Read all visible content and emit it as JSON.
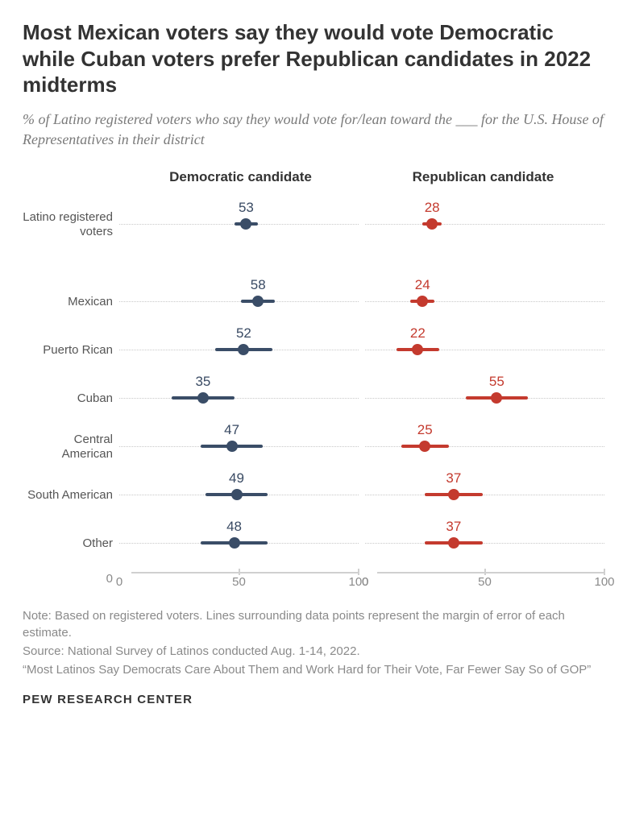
{
  "title": "Most Mexican voters say they would vote Democratic while Cuban voters prefer Republican candidates in 2022 midterms",
  "subtitle": "% of Latino registered voters who say they would vote for/lean toward the ___ for the U.S. House of Representatives in their district",
  "columns": [
    {
      "label": "Democratic candidate",
      "color": "#3a4d67",
      "label_color": "#394a63"
    },
    {
      "label": "Republican candidate",
      "color": "#c43a2e",
      "label_color": "#c43a2e"
    }
  ],
  "axis": {
    "min": 0,
    "max": 100,
    "ticks": [
      50,
      100
    ],
    "zero_label": "0"
  },
  "groups": [
    {
      "rows": [
        {
          "label": "Latino registered voters",
          "dem": {
            "v": 53,
            "lo": 48,
            "hi": 58
          },
          "rep": {
            "v": 28,
            "lo": 24,
            "hi": 32
          }
        }
      ]
    },
    {
      "rows": [
        {
          "label": "Mexican",
          "dem": {
            "v": 58,
            "lo": 51,
            "hi": 65
          },
          "rep": {
            "v": 24,
            "lo": 19,
            "hi": 29
          }
        },
        {
          "label": "Puerto Rican",
          "dem": {
            "v": 52,
            "lo": 40,
            "hi": 64
          },
          "rep": {
            "v": 22,
            "lo": 13,
            "hi": 31
          }
        },
        {
          "label": "Cuban",
          "dem": {
            "v": 35,
            "lo": 22,
            "hi": 48
          },
          "rep": {
            "v": 55,
            "lo": 42,
            "hi": 68
          }
        },
        {
          "label": "Central American",
          "dem": {
            "v": 47,
            "lo": 34,
            "hi": 60
          },
          "rep": {
            "v": 25,
            "lo": 15,
            "hi": 35
          }
        },
        {
          "label": "South American",
          "dem": {
            "v": 49,
            "lo": 36,
            "hi": 62
          },
          "rep": {
            "v": 37,
            "lo": 25,
            "hi": 49
          }
        },
        {
          "label": "Other",
          "dem": {
            "v": 48,
            "lo": 34,
            "hi": 62
          },
          "rep": {
            "v": 37,
            "lo": 25,
            "hi": 49
          }
        }
      ]
    }
  ],
  "notes": [
    "Note: Based on registered voters. Lines surrounding data points represent the margin of error of each estimate.",
    "Source: National Survey of Latinos conducted Aug. 1-14, 2022.",
    "“Most Latinos Say Democrats Care About Them and Work Hard for Their Vote, Far Fewer Say So of GOP”"
  ],
  "logo": "PEW RESEARCH CENTER",
  "style": {
    "background": "#ffffff",
    "dotline_color": "#c8c8c8",
    "axis_color": "#d0d0d0",
    "note_color": "#8a8a8a",
    "point_size": 14,
    "moe_height": 4,
    "title_fontsize": 26,
    "subtitle_fontsize": 18,
    "value_fontsize": 17
  }
}
